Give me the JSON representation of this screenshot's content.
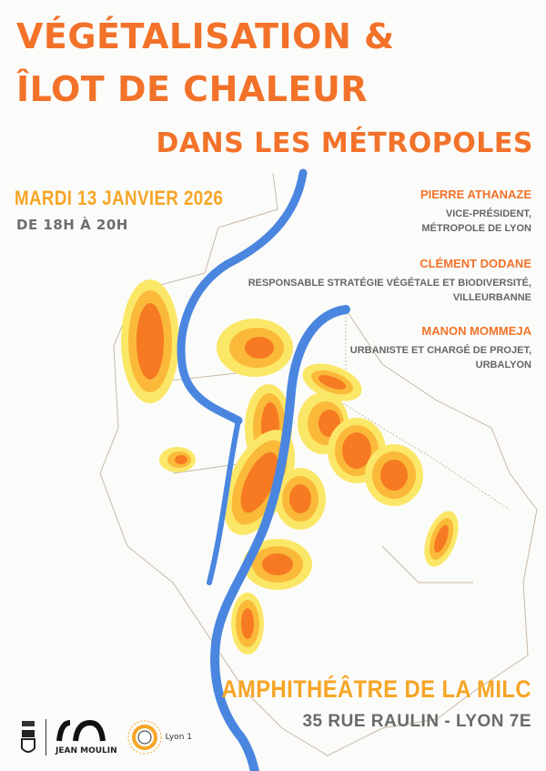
{
  "title": {
    "line1": "VÉGÉTALISATION &",
    "line2": "ÎLOT DE CHALEUR",
    "line3": "DANS LES MÉTROPOLES"
  },
  "event": {
    "date": "MARDI  13 JANVIER 2026",
    "hours": "DE 18H À 20H"
  },
  "speakers": [
    {
      "name": "PIERRE ATHANAZE",
      "role1": "VICE-PRÉSIDENT,",
      "role2": "MÉTROPOLE DE LYON"
    },
    {
      "name": "CLÉMENT DODANE",
      "role1": "RESPONSABLE STRATÉGIE VÉGÉTALE ET BIODIVERSITÉ,",
      "role2": "VILLEURBANNE"
    },
    {
      "name": "MANON MOMMEJA",
      "role1": "URBANISTE ET CHARGÉ DE PROJET,",
      "role2": "URBALYON"
    }
  ],
  "venue": {
    "name": "AMPHITHÉÂTRE DE LA MILC",
    "address": "35 RUE RAULIN - LYON 7E"
  },
  "logos": {
    "jean_moulin": "JEAN MOULIN",
    "lyon1": "Lyon 1"
  },
  "colors": {
    "title": "#f2722a",
    "date": "#f6a526",
    "river": "#4a86e0",
    "heat_core": "#f57a22",
    "heat_mid": "#fbb93a",
    "heat_outer": "#fbe767"
  }
}
